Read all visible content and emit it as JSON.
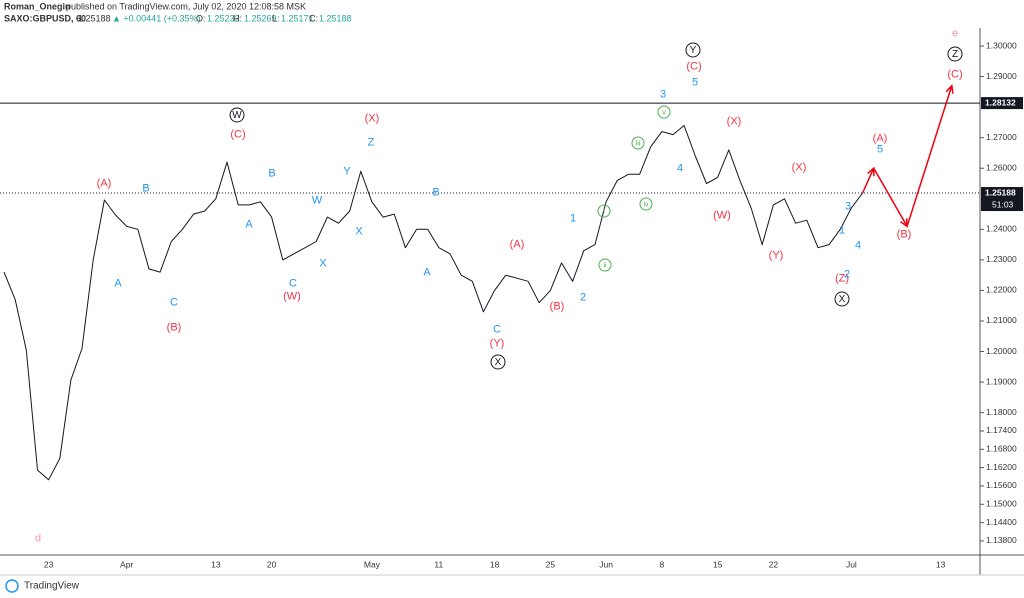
{
  "header": {
    "author": "Roman_Onegin",
    "published": "published on TradingView.com, July 02, 2020 12:08:58 MSK",
    "symbol": "SAXO:GBPUSD, 60",
    "last": "1.25188",
    "change": "▲ +0.00441 (+0.35%)",
    "open_label": "O:",
    "open": "1.25232",
    "high_label": "H:",
    "high": "1.25269",
    "low_label": "L:",
    "low": "1.25171",
    "close_label": "C:",
    "close": "1.25188"
  },
  "footer": {
    "brand": "TradingView"
  },
  "chart_data": {
    "type": "line",
    "color": "#131722",
    "projection_color": "#f0000f",
    "categories": [
      null,
      null,
      null,
      null,
      "23",
      null,
      null,
      null,
      null,
      null,
      null,
      "Apr",
      null,
      null,
      null,
      null,
      null,
      null,
      null,
      "13",
      null,
      null,
      null,
      null,
      "20",
      null,
      null,
      null,
      null,
      null,
      null,
      null,
      null,
      "May",
      null,
      null,
      null,
      null,
      null,
      "11",
      null,
      null,
      null,
      null,
      "18",
      null,
      null,
      null,
      null,
      "25",
      null,
      null,
      null,
      null,
      "Jun",
      null,
      null,
      null,
      null,
      "8",
      null,
      null,
      null,
      null,
      "15",
      null,
      null,
      null,
      null,
      "22",
      null,
      null,
      null,
      null,
      null,
      null,
      "Jul",
      null,
      null,
      null,
      null,
      null,
      null,
      null,
      "13",
      null,
      null
    ],
    "values": [
      1.226,
      1.217,
      1.2005,
      1.1612,
      1.158,
      1.165,
      1.1907,
      1.201,
      1.23,
      1.2496,
      1.2447,
      1.241,
      1.24,
      1.227,
      1.226,
      1.236,
      1.24,
      1.245,
      1.246,
      1.25,
      1.262,
      1.248,
      1.248,
      1.249,
      1.244,
      1.23,
      1.232,
      1.234,
      1.236,
      1.244,
      1.242,
      1.246,
      1.259,
      1.249,
      1.244,
      1.245,
      1.234,
      1.24,
      1.24,
      1.234,
      1.232,
      1.225,
      1.223,
      1.213,
      1.22,
      1.225,
      1.224,
      1.223,
      1.216,
      1.22,
      1.229,
      1.223,
      1.233,
      1.235,
      1.249,
      1.256,
      1.258,
      1.258,
      1.267,
      1.272,
      1.271,
      1.274,
      1.264,
      1.255,
      1.257,
      1.266,
      1.256,
      1.247,
      1.235,
      1.248,
      1.25,
      1.242,
      1.243,
      1.234,
      1.235,
      1.24,
      1.247,
      1.2519,
      null,
      null,
      null,
      null,
      null,
      null,
      null,
      null,
      null
    ],
    "projection": [
      null,
      null,
      null,
      null,
      null,
      null,
      null,
      null,
      null,
      null,
      null,
      null,
      null,
      null,
      null,
      null,
      null,
      null,
      null,
      null,
      null,
      null,
      null,
      null,
      null,
      null,
      null,
      null,
      null,
      null,
      null,
      null,
      null,
      null,
      null,
      null,
      null,
      null,
      null,
      null,
      null,
      null,
      null,
      null,
      null,
      null,
      null,
      null,
      null,
      null,
      null,
      null,
      null,
      null,
      null,
      null,
      null,
      null,
      null,
      null,
      null,
      null,
      null,
      null,
      null,
      null,
      null,
      null,
      null,
      null,
      null,
      null,
      null,
      null,
      null,
      null,
      null,
      1.2519,
      1.26,
      1.2537,
      1.2473,
      1.241,
      1.2525,
      1.264,
      1.2755,
      1.287,
      null
    ],
    "ylim": [
      1.1334,
      1.3059
    ],
    "yticks": [
      {
        "value": 1.3,
        "label": "1.30000"
      },
      {
        "value": 1.29,
        "label": "1.29000"
      },
      {
        "value": 1.27,
        "label": "1.27000"
      },
      {
        "value": 1.26,
        "label": "1.26000"
      },
      {
        "value": 1.24,
        "label": "1.24000"
      },
      {
        "value": 1.23,
        "label": "1.23000"
      },
      {
        "value": 1.22,
        "label": "1.22000"
      },
      {
        "value": 1.21,
        "label": "1.21000"
      },
      {
        "value": 1.2,
        "label": "1.20000"
      },
      {
        "value": 1.19,
        "label": "1.19000"
      },
      {
        "value": 1.18,
        "label": "1.18000"
      },
      {
        "value": 1.174,
        "label": "1.17400"
      },
      {
        "value": 1.168,
        "label": "1.16800"
      },
      {
        "value": 1.162,
        "label": "1.16200"
      },
      {
        "value": 1.156,
        "label": "1.15600"
      },
      {
        "value": 1.15,
        "label": "1.15000"
      },
      {
        "value": 1.144,
        "label": "1.14400"
      },
      {
        "value": 1.138,
        "label": "1.13800"
      }
    ],
    "hline": {
      "value": 1.28132,
      "label": "1.28132"
    },
    "last_price": {
      "value": 1.25188,
      "label": "1.25188"
    },
    "timer": "51:03",
    "annotations": [
      {
        "text": "(A)",
        "color": "#f23645"
      },
      {
        "text": "(B)",
        "color": "#f23645"
      },
      {
        "text": "(C)",
        "color": "#f23645"
      },
      {
        "text": "(W)",
        "color": "#f23645"
      },
      {
        "text": "(X)",
        "color": "#f23645"
      },
      {
        "text": "(Y)",
        "color": "#f23645"
      },
      {
        "text": "(A)",
        "color": "#f23645"
      },
      {
        "text": "(B)",
        "color": "#f23645"
      },
      {
        "text": "(X)",
        "color": "#f23645"
      },
      {
        "text": "(W)",
        "color": "#f23645"
      },
      {
        "text": "(X)",
        "color": "#f23645"
      },
      {
        "text": "(Y)",
        "color": "#f23645"
      },
      {
        "text": "(Z)",
        "color": "#f23645"
      },
      {
        "text": "(A)",
        "color": "#f23645"
      },
      {
        "text": "(B)",
        "color": "#f23645"
      },
      {
        "text": "(C)",
        "color": "#f23645"
      },
      {
        "text": "(C)",
        "color": "#f23645"
      },
      {
        "text": "B",
        "color": "#2196f3"
      },
      {
        "text": "A",
        "color": "#2196f3"
      },
      {
        "text": "C",
        "color": "#2196f3"
      },
      {
        "text": "A",
        "color": "#2196f3"
      },
      {
        "text": "B",
        "color": "#2196f3"
      },
      {
        "text": "C",
        "color": "#2196f3"
      },
      {
        "text": "W",
        "color": "#2196f3"
      },
      {
        "text": "X",
        "color": "#2196f3"
      },
      {
        "text": "Y",
        "color": "#2196f3"
      },
      {
        "text": "X",
        "color": "#2196f3"
      },
      {
        "text": "Z",
        "color": "#2196f3"
      },
      {
        "text": "B",
        "color": "#2196f3"
      },
      {
        "text": "A",
        "color": "#2196f3"
      },
      {
        "text": "C",
        "color": "#2196f3"
      },
      {
        "text": "1",
        "color": "#2196f3"
      },
      {
        "text": "2",
        "color": "#2196f3"
      },
      {
        "text": "3",
        "color": "#2196f3"
      },
      {
        "text": "5",
        "color": "#2196f3"
      },
      {
        "text": "4",
        "color": "#2196f3"
      },
      {
        "text": "3",
        "color": "#2196f3"
      },
      {
        "text": "1",
        "color": "#2196f3"
      },
      {
        "text": "4",
        "color": "#2196f3"
      },
      {
        "text": "2",
        "color": "#2196f3"
      },
      {
        "text": "5",
        "color": "#2196f3"
      },
      {
        "text": "W",
        "color": "#131722",
        "circled": true
      },
      {
        "text": "X",
        "color": "#131722",
        "circled": true
      },
      {
        "text": "Y",
        "color": "#131722",
        "circled": true
      },
      {
        "text": "X",
        "color": "#131722",
        "circled": true
      },
      {
        "text": "Z",
        "color": "#131722",
        "circled": true
      },
      {
        "text": "i",
        "color": "#4caf50",
        "circled": true
      },
      {
        "text": "ii",
        "color": "#4caf50",
        "circled": true
      },
      {
        "text": "iii",
        "color": "#4caf50",
        "circled": true
      },
      {
        "text": "iv",
        "color": "#4caf50",
        "circled": true
      },
      {
        "text": "v",
        "color": "#4caf50",
        "circled": true
      },
      {
        "text": "e",
        "color": "#f48fb1"
      },
      {
        "text": "d",
        "color": "#f48fb1"
      }
    ]
  }
}
